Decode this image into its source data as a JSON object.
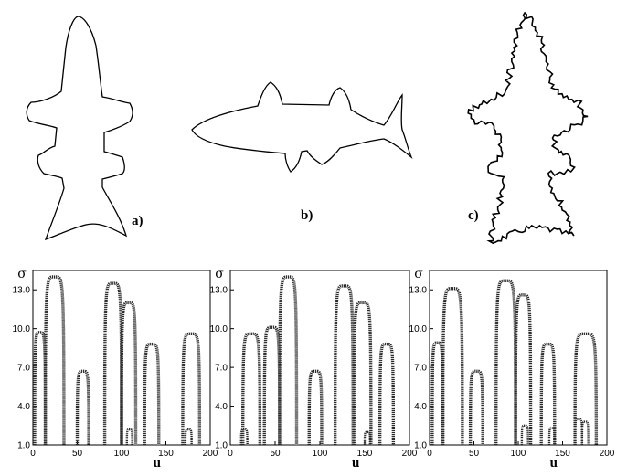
{
  "shape_labels": {
    "a": "a)",
    "b": "b)",
    "c": "c)"
  },
  "chart_data": [
    {
      "type": "line",
      "xlabel": "u",
      "ylabel": "σ",
      "xlim": [
        0,
        200
      ],
      "ylim": [
        1.0,
        14.5
      ],
      "x_ticks": [
        "0",
        "50",
        "100",
        "150",
        "200"
      ],
      "y_ticks": [
        "1.0",
        "4.0",
        "7.0",
        "10.0",
        "13.0"
      ],
      "arches": [
        [
          2,
          14,
          9.7
        ],
        [
          14,
          35,
          14.0
        ],
        [
          50,
          63,
          6.7
        ],
        [
          81,
          100,
          13.5
        ],
        [
          100,
          116,
          12.0
        ],
        [
          126,
          142,
          8.8
        ],
        [
          169,
          188,
          9.6
        ]
      ],
      "small_arches": [
        [
          106,
          112,
          2.2
        ],
        [
          172,
          179,
          2.2
        ]
      ]
    },
    {
      "type": "line",
      "xlabel": "u",
      "ylabel": "σ",
      "xlim": [
        0,
        200
      ],
      "ylim": [
        1.0,
        14.5
      ],
      "x_ticks": [
        "0",
        "50",
        "100",
        "150",
        "200"
      ],
      "y_ticks": [
        "1.0",
        "4.0",
        "7.0",
        "10.0",
        "13.0"
      ],
      "arches": [
        [
          14,
          33,
          9.6
        ],
        [
          38,
          55,
          10.1
        ],
        [
          55,
          74,
          14.0
        ],
        [
          88,
          102,
          6.7
        ],
        [
          117,
          137,
          13.3
        ],
        [
          138,
          157,
          12.0
        ],
        [
          167,
          182,
          8.8
        ]
      ],
      "small_arches": [
        [
          12,
          19,
          2.2
        ],
        [
          150,
          156,
          2.0
        ]
      ]
    },
    {
      "type": "line",
      "xlabel": "u",
      "ylabel": "σ",
      "xlim": [
        0,
        200
      ],
      "ylim": [
        1.0,
        14.5
      ],
      "x_ticks": [
        "0",
        "50",
        "100",
        "150",
        "200"
      ],
      "y_ticks": [
        "1.0",
        "4.0",
        "7.0",
        "10.0",
        "13.0"
      ],
      "arches": [
        [
          3,
          15,
          8.9
        ],
        [
          15,
          37,
          13.1
        ],
        [
          46,
          60,
          6.7
        ],
        [
          75,
          97,
          13.7
        ],
        [
          97,
          114,
          12.6
        ],
        [
          126,
          141,
          8.8
        ],
        [
          164,
          188,
          9.6
        ]
      ],
      "small_arches": [
        [
          104,
          111,
          2.5
        ],
        [
          135,
          141,
          2.3
        ],
        [
          164,
          172,
          3.0
        ],
        [
          172,
          179,
          2.8
        ]
      ]
    }
  ]
}
